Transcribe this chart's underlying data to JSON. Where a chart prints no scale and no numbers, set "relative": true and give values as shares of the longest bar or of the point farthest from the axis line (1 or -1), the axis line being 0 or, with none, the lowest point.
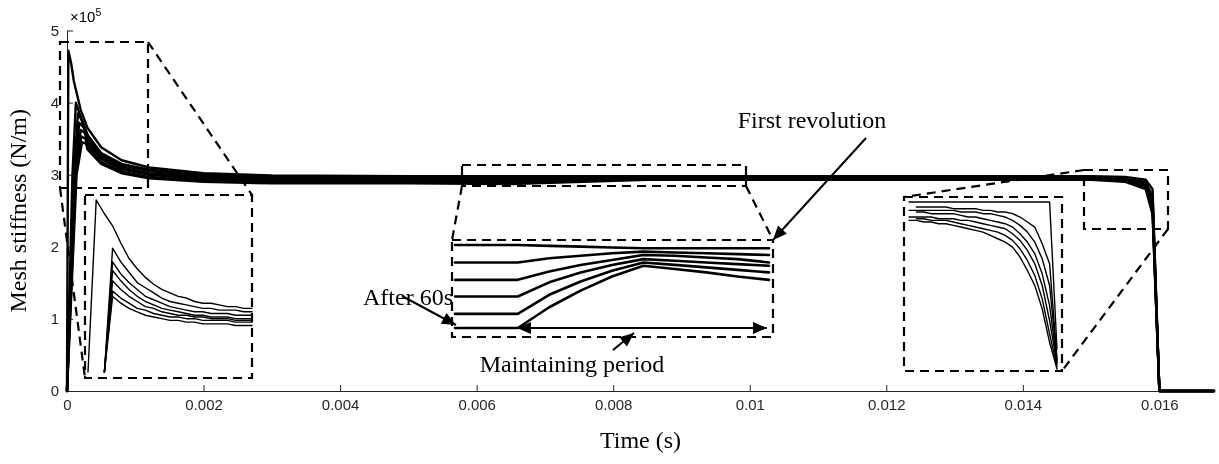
{
  "chart_data": [
    {
      "type": "line",
      "xlabel": "Time (s)",
      "ylabel": "Mesh stiffness (N/m)",
      "annotations": [
        "×10$^{5}$",
        "First revolution",
        "After 60s",
        "Maintaining period"
      ],
      "xlim": [
        0,
        0.0168
      ],
      "xticks": [
        0,
        0.002,
        0.004,
        0.006,
        0.008,
        0.01,
        0.012,
        0.014,
        0.016
      ],
      "ylim": [
        0,
        5
      ],
      "yticks": [
        0,
        1,
        2,
        3,
        4,
        5
      ],
      "series": [
        {
          "color": "#000000",
          "x": [
            0,
            2e-05,
            6e-05,
            0.0001,
            0.0002,
            0.0003,
            0.0005,
            0.0008,
            0.0012,
            0.002,
            0.003,
            0.005,
            0.0065,
            0.0085,
            0.012,
            0.015,
            0.0155,
            0.0158,
            0.0159,
            0.016,
            0.0168
          ],
          "values": [
            0,
            4.72,
            4.55,
            4.3,
            3.9,
            3.65,
            3.38,
            3.2,
            3.1,
            3.02,
            2.99,
            2.98,
            2.98,
            2.98,
            2.98,
            2.98,
            2.97,
            2.93,
            2.8,
            0,
            0
          ]
        },
        {
          "color": "#000000",
          "x": [
            0,
            8e-05,
            0.00013,
            0.0002,
            0.0003,
            0.0005,
            0.0008,
            0.0012,
            0.002,
            0.003,
            0.005,
            0.0065,
            0.0085,
            0.012,
            0.015,
            0.0155,
            0.0158,
            0.0159,
            0.016,
            0.0168
          ],
          "values": [
            0,
            3.0,
            4.0,
            3.8,
            3.55,
            3.3,
            3.15,
            3.07,
            3.0,
            2.97,
            2.96,
            2.96,
            2.97,
            2.97,
            2.97,
            2.95,
            2.9,
            2.7,
            0,
            0
          ]
        },
        {
          "color": "#000000",
          "x": [
            0,
            0.0001,
            0.00016,
            0.00022,
            0.0003,
            0.0005,
            0.0008,
            0.0012,
            0.002,
            0.003,
            0.005,
            0.0065,
            0.0085,
            0.012,
            0.015,
            0.0155,
            0.0158,
            0.0159,
            0.016,
            0.0168
          ],
          "values": [
            0,
            3.0,
            3.85,
            3.75,
            3.55,
            3.28,
            3.13,
            3.05,
            2.98,
            2.95,
            2.95,
            2.94,
            2.96,
            2.96,
            2.96,
            2.94,
            2.88,
            2.65,
            0,
            0
          ]
        },
        {
          "color": "#000000",
          "x": [
            0,
            0.00011,
            0.00018,
            0.00024,
            0.0003,
            0.0005,
            0.0008,
            0.0012,
            0.002,
            0.003,
            0.005,
            0.0065,
            0.0085,
            0.012,
            0.015,
            0.0155,
            0.0158,
            0.0159,
            0.016,
            0.0168
          ],
          "values": [
            0,
            3.0,
            3.72,
            3.66,
            3.5,
            3.25,
            3.1,
            3.02,
            2.96,
            2.94,
            2.93,
            2.93,
            2.96,
            2.96,
            2.96,
            2.93,
            2.86,
            2.6,
            0,
            0
          ]
        },
        {
          "color": "#000000",
          "x": [
            0,
            0.00012,
            0.0002,
            0.00026,
            0.0003,
            0.0005,
            0.0008,
            0.0012,
            0.002,
            0.003,
            0.005,
            0.0065,
            0.0085,
            0.012,
            0.015,
            0.0155,
            0.0158,
            0.0159,
            0.016,
            0.0168
          ],
          "values": [
            0,
            3.0,
            3.62,
            3.58,
            3.45,
            3.22,
            3.07,
            3.0,
            2.94,
            2.92,
            2.92,
            2.91,
            2.95,
            2.95,
            2.95,
            2.92,
            2.84,
            2.55,
            0,
            0
          ]
        },
        {
          "color": "#000000",
          "x": [
            0,
            0.00013,
            0.00021,
            0.00027,
            0.0003,
            0.0005,
            0.0008,
            0.0012,
            0.002,
            0.003,
            0.005,
            0.0065,
            0.0085,
            0.012,
            0.015,
            0.0155,
            0.0158,
            0.0159,
            0.016,
            0.0168
          ],
          "values": [
            0,
            3.0,
            3.53,
            3.5,
            3.4,
            3.18,
            3.04,
            2.97,
            2.92,
            2.9,
            2.9,
            2.89,
            2.94,
            2.94,
            2.94,
            2.91,
            2.82,
            2.5,
            0,
            0
          ]
        },
        {
          "color": "#000000",
          "x": [
            0,
            0.00014,
            0.00022,
            0.00028,
            0.0003,
            0.0005,
            0.0008,
            0.0012,
            0.002,
            0.003,
            0.005,
            0.0065,
            0.0085,
            0.012,
            0.015,
            0.0155,
            0.0158,
            0.0159,
            0.016,
            0.0168
          ],
          "values": [
            0,
            3.0,
            3.45,
            3.43,
            3.35,
            3.15,
            3.02,
            2.95,
            2.9,
            2.88,
            2.88,
            2.87,
            2.93,
            2.93,
            2.93,
            2.9,
            2.8,
            2.45,
            0,
            0
          ]
        }
      ]
    },
    {
      "type": "line",
      "relative": true,
      "categories": [
        null,
        null,
        null,
        null,
        null,
        null,
        null,
        null,
        null,
        null,
        null,
        null,
        null,
        null,
        null,
        null,
        null,
        null,
        null,
        null,
        null
      ],
      "series": [
        {
          "color": "#000000",
          "values": [
            0,
            1.0,
            0.92,
            0.85,
            0.75,
            0.66,
            0.6,
            0.55,
            0.51,
            0.48,
            0.46,
            0.44,
            0.43,
            0.41,
            0.4,
            0.4,
            0.39,
            0.38,
            0.38,
            0.37,
            0.37
          ]
        },
        {
          "color": "#000000",
          "values": [
            null,
            null,
            0,
            0.72,
            0.64,
            0.58,
            0.52,
            0.49,
            0.46,
            0.43,
            0.41,
            0.4,
            0.39,
            0.38,
            0.37,
            0.37,
            0.36,
            0.36,
            0.36,
            0.35,
            0.35
          ]
        },
        {
          "color": "#000000",
          "values": [
            null,
            null,
            0,
            0.64,
            0.57,
            0.52,
            0.48,
            0.44,
            0.42,
            0.4,
            0.38,
            0.37,
            0.36,
            0.35,
            0.35,
            0.34,
            0.34,
            0.34,
            0.33,
            0.33,
            0.33
          ]
        },
        {
          "color": "#000000",
          "values": [
            null,
            null,
            0,
            0.59,
            0.53,
            0.48,
            0.44,
            0.41,
            0.39,
            0.37,
            0.36,
            0.35,
            0.34,
            0.33,
            0.33,
            0.32,
            0.32,
            0.32,
            0.31,
            0.31,
            0.31
          ]
        },
        {
          "color": "#000000",
          "values": [
            null,
            null,
            0,
            0.53,
            0.48,
            0.44,
            0.41,
            0.38,
            0.37,
            0.35,
            0.34,
            0.33,
            0.33,
            0.32,
            0.32,
            0.31,
            0.31,
            0.31,
            0.3,
            0.3,
            0.3
          ]
        },
        {
          "color": "#000000",
          "values": [
            null,
            null,
            0,
            0.47,
            0.43,
            0.4,
            0.37,
            0.36,
            0.34,
            0.33,
            0.32,
            0.32,
            0.31,
            0.31,
            0.3,
            0.3,
            0.3,
            0.3,
            0.29,
            0.29,
            0.29
          ]
        },
        {
          "color": "#000000",
          "values": [
            null,
            null,
            0,
            0.44,
            0.4,
            0.37,
            0.35,
            0.33,
            0.32,
            0.31,
            0.3,
            0.3,
            0.29,
            0.29,
            0.28,
            0.28,
            0.28,
            0.28,
            0.27,
            0.27,
            0.27
          ]
        }
      ]
    },
    {
      "type": "line",
      "relative": true,
      "categories": [
        null,
        null,
        null,
        null,
        null,
        null,
        null,
        null,
        null,
        null,
        null
      ],
      "series": [
        {
          "color": "#000000",
          "values": [
            1,
            1,
            1,
            0.99,
            0.98,
            0.97,
            0.96,
            0.96,
            0.96,
            0.96,
            0.96
          ]
        },
        {
          "color": "#000000",
          "values": [
            0.79,
            0.79,
            0.79,
            0.84,
            0.87,
            0.9,
            0.92,
            0.91,
            0.9,
            0.89,
            0.88
          ]
        },
        {
          "color": "#000000",
          "values": [
            0.58,
            0.58,
            0.58,
            0.68,
            0.76,
            0.82,
            0.88,
            0.87,
            0.85,
            0.83,
            0.79
          ]
        },
        {
          "color": "#000000",
          "values": [
            0.38,
            0.38,
            0.38,
            0.55,
            0.67,
            0.76,
            0.83,
            0.81,
            0.79,
            0.77,
            0.75
          ]
        },
        {
          "color": "#000000",
          "values": [
            0.17,
            0.17,
            0.17,
            0.4,
            0.56,
            0.69,
            0.79,
            0.76,
            0.73,
            0.7,
            0.67
          ]
        },
        {
          "color": "#000000",
          "values": [
            0,
            0,
            0,
            0.25,
            0.45,
            0.62,
            0.75,
            0.71,
            0.67,
            0.62,
            0.58
          ]
        }
      ]
    },
    {
      "type": "line",
      "relative": true,
      "categories": [
        null,
        null,
        null,
        null,
        null,
        null,
        null,
        null,
        null,
        null,
        null,
        null,
        null,
        null,
        null,
        null,
        null,
        null,
        null,
        null,
        null
      ],
      "series": [
        {
          "color": "#000000",
          "values": [
            1,
            1,
            1,
            1,
            1,
            1,
            1,
            1,
            1,
            1,
            1,
            1,
            1,
            1,
            1,
            1,
            1,
            1,
            1,
            1,
            0.12
          ]
        },
        {
          "color": "#000000",
          "values": [
            null,
            0.97,
            0.97,
            0.97,
            0.97,
            0.97,
            0.96,
            0.96,
            0.96,
            0.96,
            0.95,
            0.95,
            0.94,
            0.94,
            0.93,
            0.91,
            0.88,
            0.85,
            0.75,
            0.63,
            0.06
          ]
        },
        {
          "color": "#000000",
          "values": [
            0.95,
            0.95,
            0.95,
            0.95,
            0.95,
            0.95,
            0.95,
            0.94,
            0.94,
            0.94,
            0.93,
            0.93,
            0.92,
            0.91,
            0.89,
            0.86,
            0.82,
            0.76,
            0.66,
            0.5,
            0.05
          ]
        },
        {
          "color": "#000000",
          "values": [
            null,
            0.94,
            0.94,
            0.93,
            0.93,
            0.93,
            0.93,
            0.92,
            0.91,
            0.91,
            0.9,
            0.89,
            0.88,
            0.87,
            0.85,
            0.81,
            0.76,
            0.69,
            0.57,
            0.38,
            0.04
          ]
        },
        {
          "color": "#000000",
          "values": [
            0.91,
            0.91,
            0.91,
            0.91,
            0.9,
            0.9,
            0.9,
            0.89,
            0.89,
            0.88,
            0.87,
            0.86,
            0.85,
            0.84,
            0.81,
            0.77,
            0.71,
            0.63,
            0.5,
            0.29,
            0.03
          ]
        },
        {
          "color": "#000000",
          "values": [
            null,
            0.9,
            0.9,
            0.89,
            0.89,
            0.89,
            0.88,
            0.87,
            0.86,
            0.85,
            0.84,
            0.83,
            0.82,
            0.8,
            0.77,
            0.72,
            0.65,
            0.56,
            0.42,
            0.21,
            0.015
          ]
        },
        {
          "color": "#000000",
          "values": [
            0.89,
            0.89,
            0.88,
            0.88,
            0.87,
            0.87,
            0.86,
            0.85,
            0.84,
            0.83,
            0.82,
            0.8,
            0.78,
            0.76,
            0.73,
            0.67,
            0.59,
            0.5,
            0.36,
            0.16,
            0
          ]
        }
      ]
    }
  ]
}
